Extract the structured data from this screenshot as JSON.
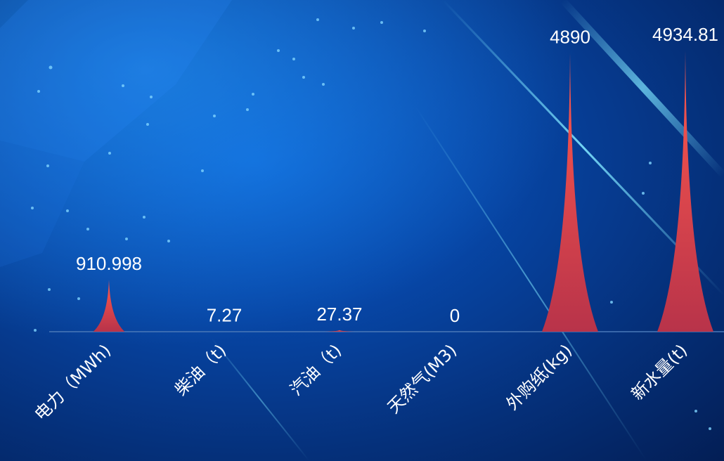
{
  "colors": {
    "bar_top": "#ff5a4e",
    "bar_bottom": "#b8334a",
    "axis": "#4a78b8",
    "text": "#ffffff"
  },
  "chart_data": {
    "type": "bar",
    "bar_shape": "pictorial-spike",
    "categories": [
      "电力（MWh)",
      "柴油（t)",
      "汽油（t)",
      "天然气(M3)",
      "外购纸(kg)",
      "新水量(t)"
    ],
    "values": [
      910.998,
      7.27,
      27.37,
      0,
      4890,
      4934.81
    ],
    "value_labels": [
      "910.998",
      "7.27",
      "27.37",
      "0",
      "4890",
      "4934.81"
    ],
    "title": "",
    "xlabel": "",
    "ylabel": "",
    "ylim": [
      0,
      5000
    ],
    "grid": false,
    "legend": "none"
  }
}
